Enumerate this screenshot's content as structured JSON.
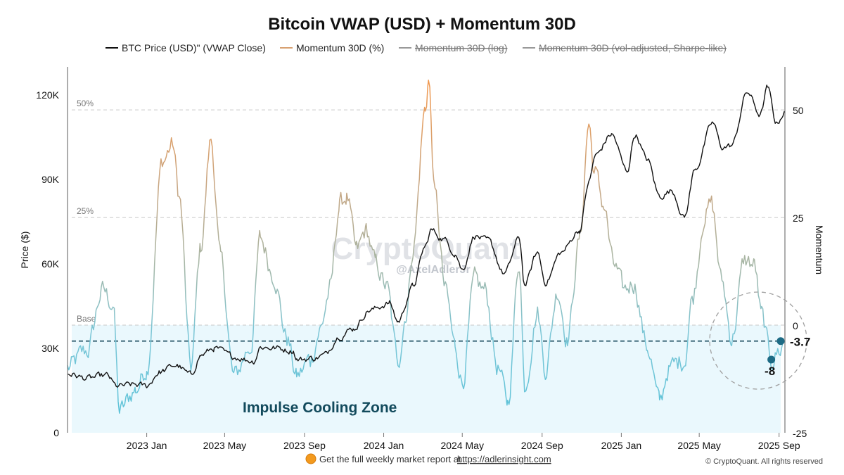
{
  "chart_data": {
    "type": "line",
    "title": "Bitcoin VWAP (USD) + Momentum 30D",
    "legend": {
      "placement": "top-center",
      "items": [
        {
          "label": "BTC Price (USD)\" (VWAP Close)",
          "color": "#111111",
          "enabled": true
        },
        {
          "label": "Momentum 30D (%)",
          "color": "#d8a172",
          "enabled": true
        },
        {
          "label": "Momentum 30D (log)",
          "color": "#888888",
          "enabled": false
        },
        {
          "label": "Momentum 30D (vol-adjusted, Sharpe-like)",
          "color": "#888888",
          "enabled": false
        }
      ]
    },
    "y_left": {
      "label": "Price ($)",
      "range": [
        0,
        130000
      ],
      "ticks": [
        0,
        30000,
        60000,
        90000,
        120000
      ],
      "tick_labels": [
        "0",
        "30K",
        "60K",
        "90K",
        "120K"
      ]
    },
    "y_right": {
      "label": "Momentum",
      "range": [
        -25,
        60
      ],
      "ticks": [
        -25,
        0,
        25,
        50
      ],
      "tick_labels": [
        "-25",
        "0",
        "25",
        "50"
      ]
    },
    "x_axis": {
      "range": [
        "2022-09-01",
        "2025-09-10"
      ],
      "ticks": [
        {
          "date": "2023-01-01",
          "label": "2023 Jan"
        },
        {
          "date": "2023-05-01",
          "label": "2023 May"
        },
        {
          "date": "2023-09-01",
          "label": "2023 Sep"
        },
        {
          "date": "2024-01-01",
          "label": "2024 Jan"
        },
        {
          "date": "2024-05-01",
          "label": "2024 May"
        },
        {
          "date": "2024-09-01",
          "label": "2024 Sep"
        },
        {
          "date": "2025-01-01",
          "label": "2025 Jan"
        },
        {
          "date": "2025-05-01",
          "label": "2025 May"
        },
        {
          "date": "2025-09-01",
          "label": "2025 Sep"
        }
      ]
    },
    "reference_lines": [
      {
        "value": 50,
        "label": "50%"
      },
      {
        "value": 25,
        "label": "25%"
      },
      {
        "value": 0,
        "label": "Base"
      }
    ],
    "current_level": {
      "value": -3.7,
      "label": "-3.7"
    },
    "recent_low": {
      "value": -8,
      "label": "-8",
      "date": "2025-08-20"
    },
    "zone": {
      "label": "Impulse Cooling Zone",
      "from": -25,
      "to": 0
    },
    "price_series": {
      "name": "BTC Price (USD) (VWAP Close)",
      "points": [
        [
          "2022-09-01",
          21000
        ],
        [
          "2022-10-01",
          19300
        ],
        [
          "2022-11-01",
          20300
        ],
        [
          "2022-11-15",
          16500
        ],
        [
          "2022-12-15",
          17000
        ],
        [
          "2023-01-01",
          16600
        ],
        [
          "2023-01-20",
          21500
        ],
        [
          "2023-02-15",
          24000
        ],
        [
          "2023-03-10",
          20500
        ],
        [
          "2023-03-25",
          27500
        ],
        [
          "2023-04-15",
          30000
        ],
        [
          "2023-05-15",
          27000
        ],
        [
          "2023-06-15",
          25500
        ],
        [
          "2023-06-25",
          30500
        ],
        [
          "2023-07-15",
          30200
        ],
        [
          "2023-08-15",
          29200
        ],
        [
          "2023-08-20",
          26000
        ],
        [
          "2023-09-15",
          26500
        ],
        [
          "2023-10-01",
          27500
        ],
        [
          "2023-10-25",
          34500
        ],
        [
          "2023-11-15",
          37000
        ],
        [
          "2023-12-10",
          43500
        ],
        [
          "2024-01-10",
          46000
        ],
        [
          "2024-01-23",
          39500
        ],
        [
          "2024-02-15",
          52000
        ],
        [
          "2024-03-05",
          66000
        ],
        [
          "2024-03-14",
          72000
        ],
        [
          "2024-04-01",
          69000
        ],
        [
          "2024-04-20",
          64000
        ],
        [
          "2024-05-01",
          58000
        ],
        [
          "2024-05-20",
          70000
        ],
        [
          "2024-06-10",
          68000
        ],
        [
          "2024-07-05",
          56500
        ],
        [
          "2024-07-28",
          69000
        ],
        [
          "2024-08-05",
          52500
        ],
        [
          "2024-08-25",
          64000
        ],
        [
          "2024-09-06",
          53500
        ],
        [
          "2024-09-30",
          64000
        ],
        [
          "2024-10-29",
          72000
        ],
        [
          "2024-11-12",
          89000
        ],
        [
          "2024-11-22",
          98500
        ],
        [
          "2024-12-17",
          106000
        ],
        [
          "2025-01-10",
          93000
        ],
        [
          "2025-01-22",
          106000
        ],
        [
          "2025-02-10",
          97000
        ],
        [
          "2025-03-01",
          84000
        ],
        [
          "2025-03-20",
          86000
        ],
        [
          "2025-04-08",
          76500
        ],
        [
          "2025-04-25",
          94000
        ],
        [
          "2025-05-22",
          110000
        ],
        [
          "2025-06-05",
          101500
        ],
        [
          "2025-06-20",
          102000
        ],
        [
          "2025-07-14",
          121000
        ],
        [
          "2025-08-03",
          113000
        ],
        [
          "2025-08-14",
          122500
        ],
        [
          "2025-08-28",
          110000
        ],
        [
          "2025-09-10",
          114000
        ]
      ]
    },
    "momentum_series": {
      "name": "Momentum 30D (%)",
      "points": [
        [
          "2022-09-01",
          -10
        ],
        [
          "2022-10-01",
          -6
        ],
        [
          "2022-10-25",
          8
        ],
        [
          "2022-11-10",
          5
        ],
        [
          "2022-11-20",
          -20
        ],
        [
          "2022-12-15",
          -15
        ],
        [
          "2023-01-01",
          -10
        ],
        [
          "2023-01-25",
          38
        ],
        [
          "2023-02-10",
          42
        ],
        [
          "2023-02-20",
          30
        ],
        [
          "2023-03-10",
          -10
        ],
        [
          "2023-03-25",
          18
        ],
        [
          "2023-04-10",
          43
        ],
        [
          "2023-04-25",
          15
        ],
        [
          "2023-05-15",
          -12
        ],
        [
          "2023-06-10",
          -5
        ],
        [
          "2023-06-25",
          20
        ],
        [
          "2023-07-15",
          12
        ],
        [
          "2023-08-05",
          -3
        ],
        [
          "2023-08-20",
          -12
        ],
        [
          "2023-09-10",
          -8
        ],
        [
          "2023-09-25",
          -1
        ],
        [
          "2023-10-10",
          8
        ],
        [
          "2023-10-25",
          28
        ],
        [
          "2023-11-05",
          30
        ],
        [
          "2023-11-20",
          17
        ],
        [
          "2023-12-05",
          22
        ],
        [
          "2023-12-20",
          14
        ],
        [
          "2024-01-05",
          9
        ],
        [
          "2024-01-23",
          -8
        ],
        [
          "2024-02-05",
          3
        ],
        [
          "2024-02-15",
          18
        ],
        [
          "2024-03-05",
          50
        ],
        [
          "2024-03-10",
          57
        ],
        [
          "2024-03-20",
          30
        ],
        [
          "2024-04-05",
          8
        ],
        [
          "2024-04-20",
          -5
        ],
        [
          "2024-05-01",
          -13
        ],
        [
          "2024-05-20",
          10
        ],
        [
          "2024-06-05",
          8
        ],
        [
          "2024-06-25",
          -10
        ],
        [
          "2024-07-10",
          -18
        ],
        [
          "2024-07-28",
          15
        ],
        [
          "2024-08-05",
          -14
        ],
        [
          "2024-08-25",
          3
        ],
        [
          "2024-09-06",
          -10
        ],
        [
          "2024-09-25",
          8
        ],
        [
          "2024-10-10",
          -3
        ],
        [
          "2024-10-29",
          20
        ],
        [
          "2024-11-12",
          47
        ],
        [
          "2024-11-20",
          36
        ],
        [
          "2024-12-05",
          28
        ],
        [
          "2024-12-20",
          14
        ],
        [
          "2025-01-05",
          8
        ],
        [
          "2025-01-20",
          10
        ],
        [
          "2025-02-10",
          -5
        ],
        [
          "2025-03-01",
          -18
        ],
        [
          "2025-03-15",
          -10
        ],
        [
          "2025-04-08",
          -8
        ],
        [
          "2025-04-20",
          6
        ],
        [
          "2025-05-10",
          26
        ],
        [
          "2025-05-20",
          28
        ],
        [
          "2025-06-05",
          10
        ],
        [
          "2025-06-20",
          -3
        ],
        [
          "2025-07-10",
          15
        ],
        [
          "2025-07-25",
          14
        ],
        [
          "2025-08-05",
          2
        ],
        [
          "2025-08-20",
          -8
        ],
        [
          "2025-09-01",
          -6
        ],
        [
          "2025-09-10",
          -3.7
        ]
      ]
    }
  },
  "watermark": {
    "brand": "CryptoQuant",
    "author": "@AxelAdlerJr"
  },
  "footer": {
    "promo_text": "Get the full weekly market report at",
    "link_text": "https://adlerinsight.com",
    "copyright": "© CryptoQuant. All rights reserved"
  },
  "colors": {
    "price": "#111111",
    "momentum_low": "#6ec7da",
    "momentum_mid": "#9fb7a8",
    "momentum_high": "#e0a06a",
    "zone_fill": "#eaf8fd",
    "marker": "#1d6b85"
  }
}
